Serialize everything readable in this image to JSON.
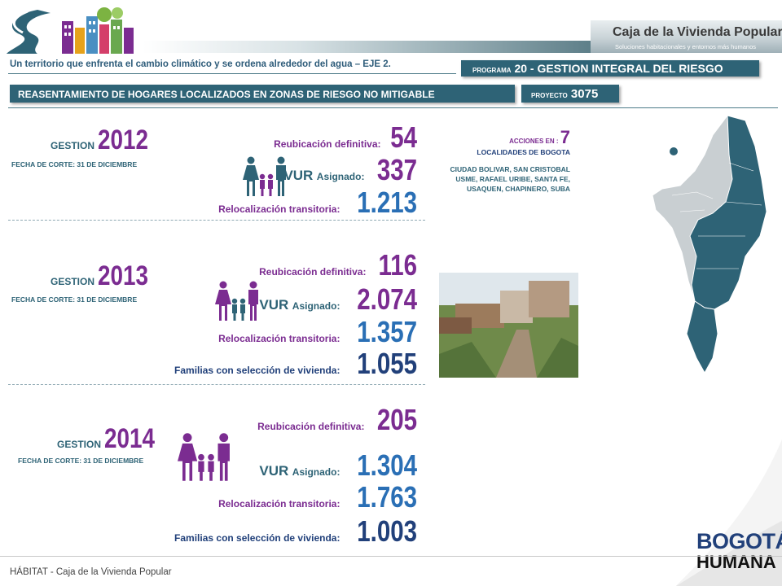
{
  "header": {
    "brand_title": "Caja de la Vivienda Popular",
    "brand_subtitle": "Soluciones habitacionales y entornos más humanos",
    "tagline": "Un territorio que enfrenta el cambio climático y se ordena alrededor del agua – EJE 2.",
    "programa_prefix": "PROGRAMA",
    "programa_text": "20 - GESTION INTEGRAL DEL RIESGO",
    "reasentamiento": "REASENTAMIENTO DE HOGARES LOCALIZADOS EN ZONAS DE RIESGO NO MITIGABLE",
    "proyecto_prefix": "PROYECTO",
    "proyecto_num": "3075"
  },
  "gestion": [
    {
      "label": "GESTION",
      "year": "2012",
      "fecha": "FECHA DE CORTE: 31 DE DICIEMBRE",
      "reubicacion_label": "Reubicación definitiva:",
      "reubicacion": "54",
      "vur_label": "VUR",
      "vur_sub": "Asignado:",
      "vur": "337",
      "reloc_label": "Relocalización transitoria:",
      "reloc": "1.213"
    },
    {
      "label": "GESTION",
      "year": "2013",
      "fecha": "FECHA DE CORTE: 31 DE DICIEMBRE",
      "reubicacion_label": "Reubicación definitiva:",
      "reubicacion": "116",
      "vur_label": "VUR",
      "vur_sub": "Asignado:",
      "vur": "2.074",
      "reloc_label": "Relocalización transitoria:",
      "reloc": "1.357",
      "familias_label": "Familias con selección de vivienda:",
      "familias": "1.055"
    },
    {
      "label": "GESTION",
      "year": "2014",
      "fecha": "FECHA DE CORTE: 31 DE DICIEMBRE",
      "reubicacion_label": "Reubicación definitiva:",
      "reubicacion": "205",
      "vur_label": "VUR",
      "vur_sub": "Asignado:",
      "vur": "1.304",
      "reloc_label": "Relocalización transitoria:",
      "reloc": "1.763",
      "familias_label": "Familias con selección de vivienda:",
      "familias": "1.003"
    }
  ],
  "acciones": {
    "prefix": "ACCIONES EN :",
    "count": "7",
    "localidades_label": "LOCALIDADES DE BOGOTA",
    "localidades": "CIUDAD BOLIVAR, SAN CRISTOBAL USME, RAFAEL URIBE, SANTA FE, USAQUEN, CHAPINERO, SUBA"
  },
  "logos": {
    "bogota_line1": "BOGOTÁ",
    "bogota_line2": "HUMANA"
  },
  "footer": {
    "text": "HÁBITAT - Caja de la Vivienda Popular"
  },
  "colors": {
    "purple": "#7b2c91",
    "teal": "#2e6376",
    "blue": "#2a6fb5",
    "navy": "#21407a"
  }
}
